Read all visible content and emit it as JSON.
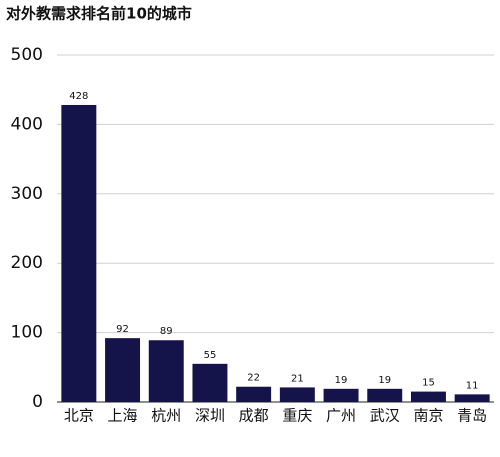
{
  "chart_data": {
    "type": "bar",
    "title": "对外教需求排名前10的城市",
    "categories": [
      "北京",
      "上海",
      "杭州",
      "深圳",
      "成都",
      "重庆",
      "广州",
      "武汉",
      "南京",
      "青岛"
    ],
    "values": [
      428,
      92,
      89,
      55,
      22,
      21,
      19,
      19,
      15,
      11
    ],
    "color": "#15144a",
    "ylim": [
      0,
      500
    ],
    "yticks": [
      0,
      100,
      200,
      300,
      400,
      500
    ],
    "grid": true
  }
}
